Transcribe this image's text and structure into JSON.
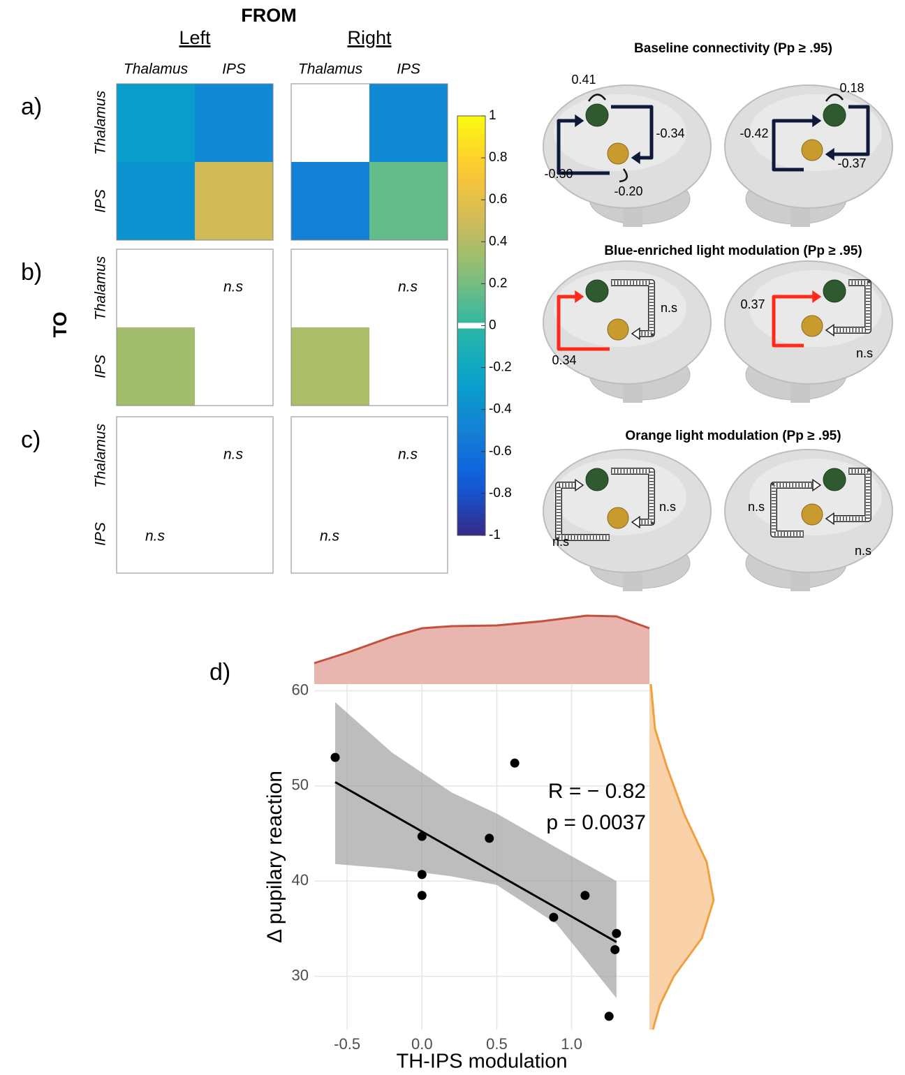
{
  "chart_data": [
    {
      "type": "heatmap",
      "title": "FROM",
      "ylabel": "TO",
      "groups": [
        "Left",
        "Right"
      ],
      "x_categories": [
        "Thalamus",
        "IPS"
      ],
      "y_categories": [
        "Thalamus",
        "IPS"
      ],
      "panel_labels": [
        "a)",
        "b)",
        "c)"
      ],
      "values": [
        [
          [
            [
              -0.3,
              -0.45
            ],
            [
              -0.38,
              0.5
            ]
          ],
          [
            [
              null,
              -0.45
            ],
            [
              -0.5,
              0.15
            ]
          ]
        ],
        [
          [
            [
              null,
              null
            ],
            [
              0.34,
              null
            ]
          ],
          [
            [
              null,
              null
            ],
            [
              0.37,
              null
            ]
          ]
        ],
        [
          [
            [
              null,
              null
            ],
            [
              null,
              null
            ]
          ],
          [
            [
              null,
              null
            ],
            [
              null,
              null
            ]
          ]
        ]
      ],
      "value_labels": [
        [
          [
            [
              null,
              null
            ],
            [
              null,
              null
            ]
          ],
          [
            [
              null,
              null
            ],
            [
              null,
              null
            ]
          ]
        ],
        [
          [
            [
              null,
              "n.s"
            ],
            [
              null,
              null
            ]
          ],
          [
            [
              null,
              "n.s"
            ],
            [
              null,
              null
            ]
          ]
        ],
        [
          [
            [
              null,
              "n.s"
            ],
            [
              "n.s",
              null
            ]
          ],
          [
            [
              null,
              "n.s"
            ],
            [
              "n.s",
              null
            ]
          ]
        ]
      ],
      "colormap": "parula",
      "clim": [
        -1,
        1
      ],
      "cticks": [
        1,
        0.8,
        0.6,
        0.4,
        0.2,
        0,
        -0.2,
        -0.4,
        -0.6,
        -0.8,
        -1
      ]
    },
    {
      "type": "scatter",
      "panel_label": "d)",
      "xlabel": "TH-IPS modulation",
      "ylabel": "Δ pupilary reaction",
      "x": [
        -0.58,
        0,
        0,
        0,
        0.45,
        0.62,
        0.88,
        1.09,
        1.3,
        1.29,
        1.25
      ],
      "y": [
        53,
        44.7,
        40.7,
        38.5,
        44.5,
        52.4,
        36.2,
        38.5,
        34.5,
        32.8,
        25.8
      ],
      "color": "#000000",
      "fit": {
        "x": [
          -0.58,
          1.3
        ],
        "y": [
          50.4,
          33.6
        ]
      },
      "band": {
        "x": [
          -0.58,
          -0.2,
          0.2,
          0.5,
          0.9,
          1.3
        ],
        "upper": [
          58.8,
          53.5,
          49.3,
          47.1,
          43.5,
          40
        ],
        "lower": [
          41.8,
          41.3,
          40.5,
          39.6,
          35.5,
          27.7
        ]
      },
      "annotations": [
        "R = − 0.82",
        "p = 0.0037"
      ],
      "xlim": [
        -0.72,
        1.52
      ],
      "ylim": [
        24.4,
        60.7
      ],
      "xticks": [
        -0.5,
        {
          "value": 0,
          "label": "0.0"
        },
        0.5,
        {
          "value": 1,
          "label": "1.0"
        }
      ],
      "yticks": [
        30,
        40,
        50,
        60
      ],
      "grid": true,
      "x_density": {
        "x": [
          -0.72,
          -0.5,
          -0.2,
          0,
          0.2,
          0.5,
          0.8,
          1.1,
          1.3,
          1.52
        ],
        "density": [
          0.3,
          0.45,
          0.68,
          0.8,
          0.83,
          0.84,
          0.9,
          0.98,
          0.97,
          0.8
        ],
        "color": "#c4503e",
        "fill": "#e8b5af"
      },
      "y_density": {
        "y": [
          24.4,
          27,
          30,
          34,
          38,
          42,
          47,
          52,
          56,
          60.7
        ],
        "density": [
          0.05,
          0.15,
          0.35,
          0.75,
          0.92,
          0.82,
          0.5,
          0.25,
          0.08,
          0.02
        ],
        "color": "#f0a040",
        "fill": "#f9d2aa"
      }
    }
  ],
  "brain_diagrams": [
    {
      "title": "Baseline connectivity (Pp ≥ .95)",
      "left": [
        "0.41",
        "-0.34",
        "-0.30",
        "-0.20"
      ],
      "right": [
        "0.18",
        "-0.42",
        "-0.37"
      ]
    },
    {
      "title": "Blue-enriched light modulation (Pp ≥ .95)",
      "left": [
        "n.s",
        "0.34"
      ],
      "right": [
        "0.37",
        "n.s"
      ]
    },
    {
      "title": "Orange light modulation (Pp ≥ .95)",
      "left": [
        "n.s",
        "n.s"
      ],
      "right": [
        "n.s",
        "n.s"
      ]
    }
  ]
}
